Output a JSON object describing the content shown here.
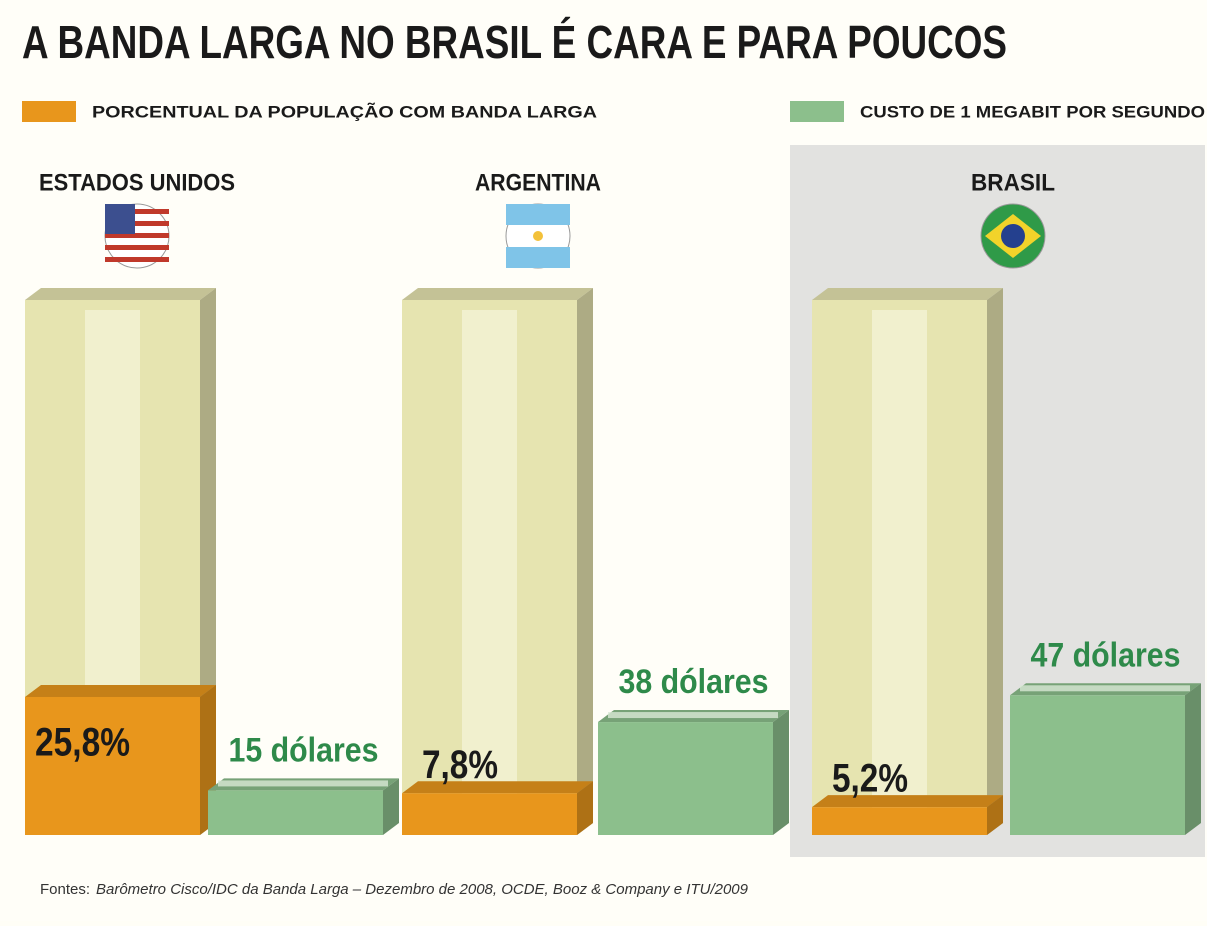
{
  "chart_data": {
    "type": "bar",
    "title": "A BANDA LARGA NO BRASIL É CARA E PARA POUCOS",
    "categories": [
      "ESTADOS UNIDOS",
      "ARGENTINA",
      "BRASIL"
    ],
    "highlight_category": "BRASIL",
    "series": [
      {
        "name": "PORCENTUAL DA POPULAÇÃO COM BANDA LARGA",
        "color": "#e8961c",
        "values": [
          25.8,
          7.8,
          5.2
        ],
        "value_labels": [
          "25,8%",
          "7,8%",
          "5,2%"
        ]
      },
      {
        "name": "CUSTO DE 1 MEGABIT POR SEGUNDO",
        "color": "#8cbf8c",
        "axis": "y2",
        "values": [
          15,
          38,
          47
        ],
        "value_labels": [
          "15 dólares",
          "38 dólares",
          "47 dólares"
        ]
      }
    ],
    "ylim": [
      0,
      100
    ],
    "y2lim": [
      0,
      180
    ],
    "source_label": "Fontes:",
    "source": "Barômetro Cisco/IDC da Banda Larga – Dezembro de 2008, OCDE, Booz & Company e ITU/2009"
  }
}
